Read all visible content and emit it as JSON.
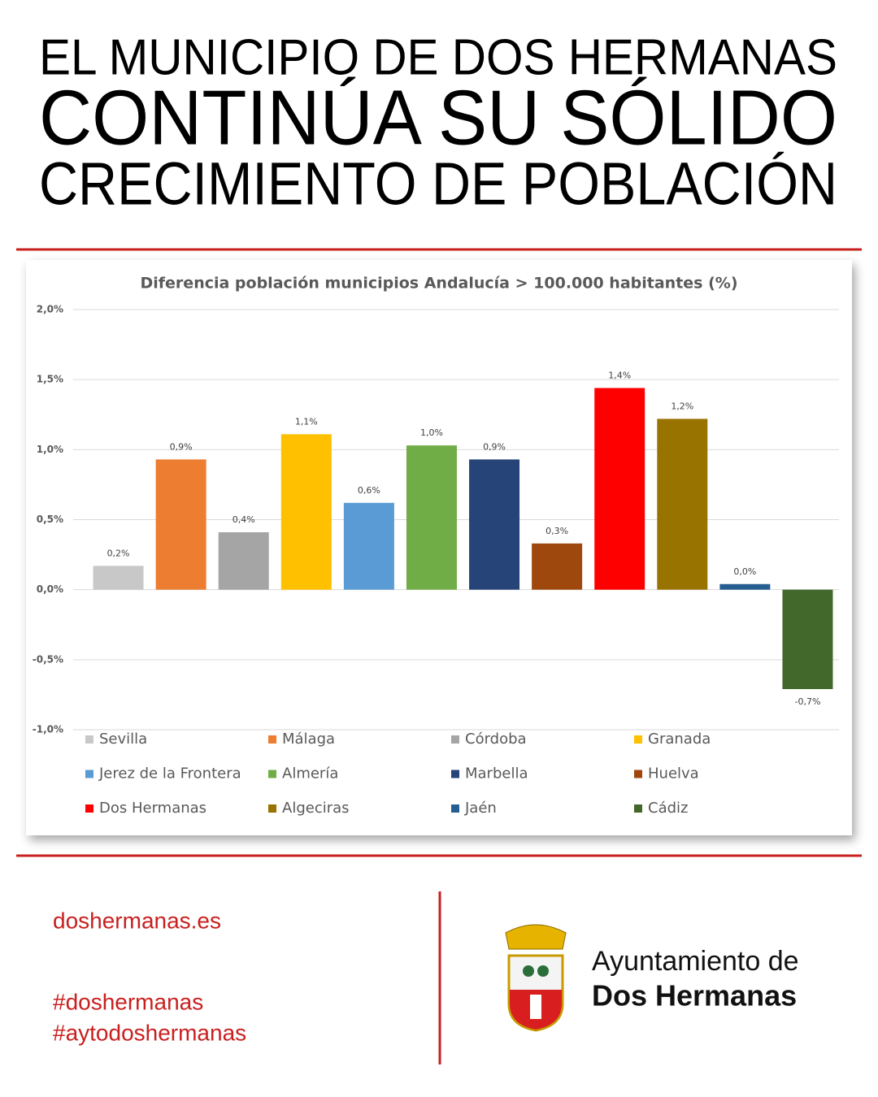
{
  "header": {
    "line1": "EL MUNICIPIO DE DOS HERMANAS",
    "line2": "CONTINÚA SU SÓLIDO",
    "line3": "CRECIMIENTO DE POBLACIÓN"
  },
  "chart_data": {
    "type": "bar",
    "title": "Diferencia población municipios Andalucía > 100.000 habitantes (%)",
    "categories": [
      "Sevilla",
      "Málaga",
      "Córdoba",
      "Granada",
      "Jerez de la Frontera",
      "Almería",
      "Marbella",
      "Huelva",
      "Dos Hermanas",
      "Algeciras",
      "Jaén",
      "Cádiz"
    ],
    "values": [
      0.17,
      0.93,
      0.41,
      1.11,
      0.62,
      1.03,
      0.93,
      0.33,
      1.44,
      1.22,
      0.04,
      -0.71
    ],
    "value_labels": [
      "0,2%",
      "0,9%",
      "0,4%",
      "1,1%",
      "0,6%",
      "1,0%",
      "0,9%",
      "0,3%",
      "1,4%",
      "1,2%",
      "0,0%",
      "-0,7%"
    ],
    "colors": [
      "#c8c8c8",
      "#ed7d31",
      "#a5a5a5",
      "#ffc000",
      "#5b9bd5",
      "#70ad47",
      "#264478",
      "#9e480e",
      "#ff0000",
      "#997300",
      "#255e91",
      "#43682b"
    ],
    "ylim": [
      -1,
      2
    ],
    "yticks": [
      {
        "value": -1,
        "label": "-1,0%"
      },
      {
        "value": -0.5,
        "label": "-0,5%"
      },
      {
        "value": 0,
        "label": "0,0%"
      },
      {
        "value": 0.5,
        "label": "0,5%"
      },
      {
        "value": 1,
        "label": "1,0%"
      },
      {
        "value": 1.5,
        "label": "1,5%"
      },
      {
        "value": 2,
        "label": "2,0%"
      }
    ],
    "grid": true,
    "legend": "bottom"
  },
  "footer": {
    "website": "doshermanas.es",
    "hashtags": [
      "#doshermanas",
      "#aytodoshermanas"
    ],
    "organization": [
      "Ayuntamiento de",
      "Dos Hermanas"
    ]
  }
}
